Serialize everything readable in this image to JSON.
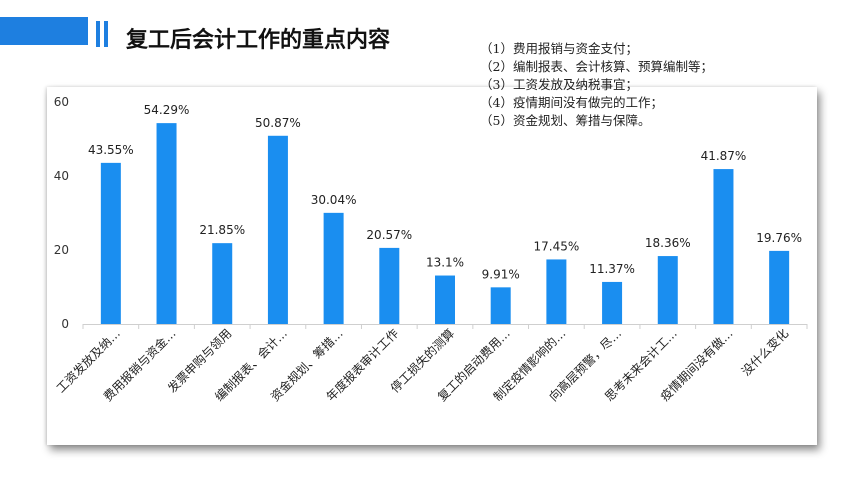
{
  "header": {
    "title": "复工后会计工作的重点内容"
  },
  "notes": [
    "（1）费用报销与资金支付；",
    "（2）编制报表、会计核算、预算编制等；",
    "（3）工资发放及纳税事宜；",
    "（4）疫情期间没有做完的工作；",
    "（5）资金规划、筹措与保障。"
  ],
  "colors": {
    "accent": "#1e7fe0",
    "bar": "#1a8ef0"
  },
  "chart_data": {
    "type": "bar",
    "categories": [
      "工资发放及纳…",
      "费用报销与资金…",
      "发票申购与领用",
      "编制报表、会计…",
      "资金规划、筹措…",
      "年度报表审计工作",
      "停工损失的测算",
      "复工的启动费用…",
      "制定疫情影响的…",
      "向高层预警，尽…",
      "思考未来会计工…",
      "疫情期间没有做…",
      "没什么变化"
    ],
    "values": [
      43.55,
      54.29,
      21.85,
      50.87,
      30.04,
      20.57,
      13.1,
      9.91,
      17.45,
      11.37,
      18.36,
      41.87,
      19.76
    ],
    "value_labels": [
      "43.55%",
      "54.29%",
      "21.85%",
      "50.87%",
      "30.04%",
      "20.57%",
      "13.1%",
      "9.91%",
      "17.45%",
      "11.37%",
      "18.36%",
      "41.87%",
      "19.76%"
    ],
    "yticks": [
      "0",
      "20",
      "40",
      "60"
    ],
    "ylim": [
      0,
      60
    ],
    "grid": false,
    "legend": "none"
  }
}
